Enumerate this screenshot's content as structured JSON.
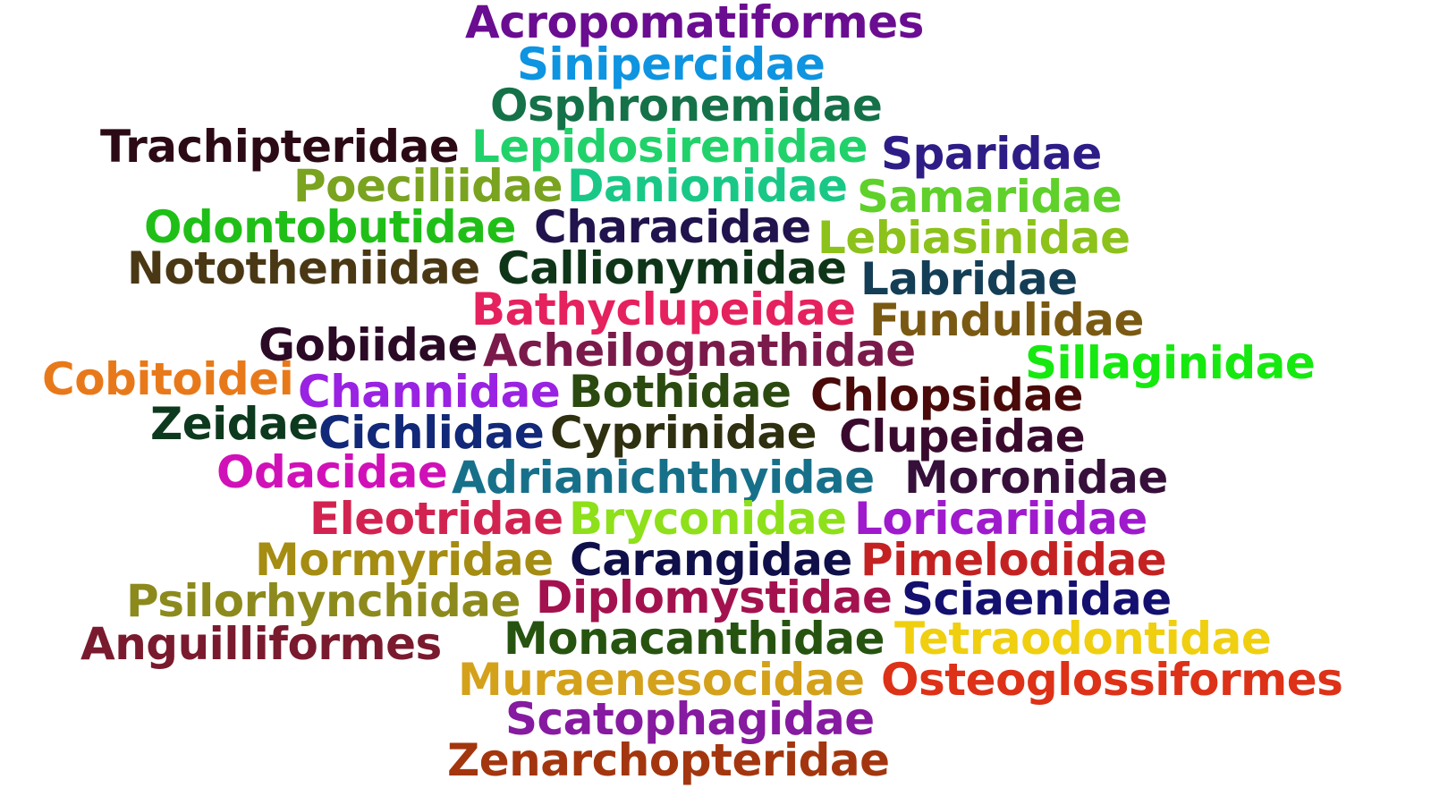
{
  "words": [
    {
      "text": "Acropomatiformes",
      "color": "#6a0d91"
    },
    {
      "text": "Sinipercidae",
      "color": "#0e94e0"
    },
    {
      "text": "Osphronemidae",
      "color": "#157148"
    },
    {
      "text": "Trachipteridae",
      "color": "#2b0a16"
    },
    {
      "text": "Lepidosirenidae",
      "color": "#21d26b"
    },
    {
      "text": "Sparidae",
      "color": "#2e1d86"
    },
    {
      "text": "Poeciliidae",
      "color": "#7aa320"
    },
    {
      "text": "Danionidae",
      "color": "#19c886"
    },
    {
      "text": "Samaridae",
      "color": "#5fd12a"
    },
    {
      "text": "Odontobutidae",
      "color": "#1fbf17"
    },
    {
      "text": "Characidae",
      "color": "#21134d"
    },
    {
      "text": "Lebiasinidae",
      "color": "#8cc21a"
    },
    {
      "text": "Nototheniidae",
      "color": "#4a3815"
    },
    {
      "text": "Callionymidae",
      "color": "#0f3518"
    },
    {
      "text": "Labridae",
      "color": "#143e56"
    },
    {
      "text": "Bathyclupeidae",
      "color": "#e5215e"
    },
    {
      "text": "Fundulidae",
      "color": "#7a5a12"
    },
    {
      "text": "Gobiidae",
      "color": "#2b0a26"
    },
    {
      "text": "Acheilognathidae",
      "color": "#7a1a4a"
    },
    {
      "text": "Sillaginidae",
      "color": "#15e90f"
    },
    {
      "text": "Cobitoidei",
      "color": "#e8791a"
    },
    {
      "text": "Channidae",
      "color": "#9a22e2"
    },
    {
      "text": "Bothidae",
      "color": "#2b4a10"
    },
    {
      "text": "Chlopsidae",
      "color": "#4a0a0a"
    },
    {
      "text": "Zeidae",
      "color": "#0d3a1e"
    },
    {
      "text": "Cichlidae",
      "color": "#122878"
    },
    {
      "text": "Cyprinidae",
      "color": "#2e3010"
    },
    {
      "text": "Clupeidae",
      "color": "#3a0a2e"
    },
    {
      "text": "Odacidae",
      "color": "#d011b8"
    },
    {
      "text": "Adrianichthyidae",
      "color": "#17708a"
    },
    {
      "text": "Moronidae",
      "color": "#36103a"
    },
    {
      "text": "Eleotridae",
      "color": "#d22350"
    },
    {
      "text": "Bryconidae",
      "color": "#8ee01a"
    },
    {
      "text": "Loricariidae",
      "color": "#9f1acd"
    },
    {
      "text": "Mormyridae",
      "color": "#a58c12"
    },
    {
      "text": "Carangidae",
      "color": "#0f0f4a"
    },
    {
      "text": "Pimelodidae",
      "color": "#c42222"
    },
    {
      "text": "Psilorhynchidae",
      "color": "#8c8a1c"
    },
    {
      "text": "Diplomystidae",
      "color": "#a3124e"
    },
    {
      "text": "Sciaenidae",
      "color": "#141070"
    },
    {
      "text": "Anguilliformes",
      "color": "#7a1a2e"
    },
    {
      "text": "Monacanthidae",
      "color": "#265410"
    },
    {
      "text": "Tetraodontidae",
      "color": "#efcf10"
    },
    {
      "text": "Muraenesocidae",
      "color": "#d4a11a"
    },
    {
      "text": "Osteoglossiformes",
      "color": "#dd3118"
    },
    {
      "text": "Scatophagidae",
      "color": "#861aa0"
    },
    {
      "text": "Zenarchopteridae",
      "color": "#a3360e"
    }
  ]
}
